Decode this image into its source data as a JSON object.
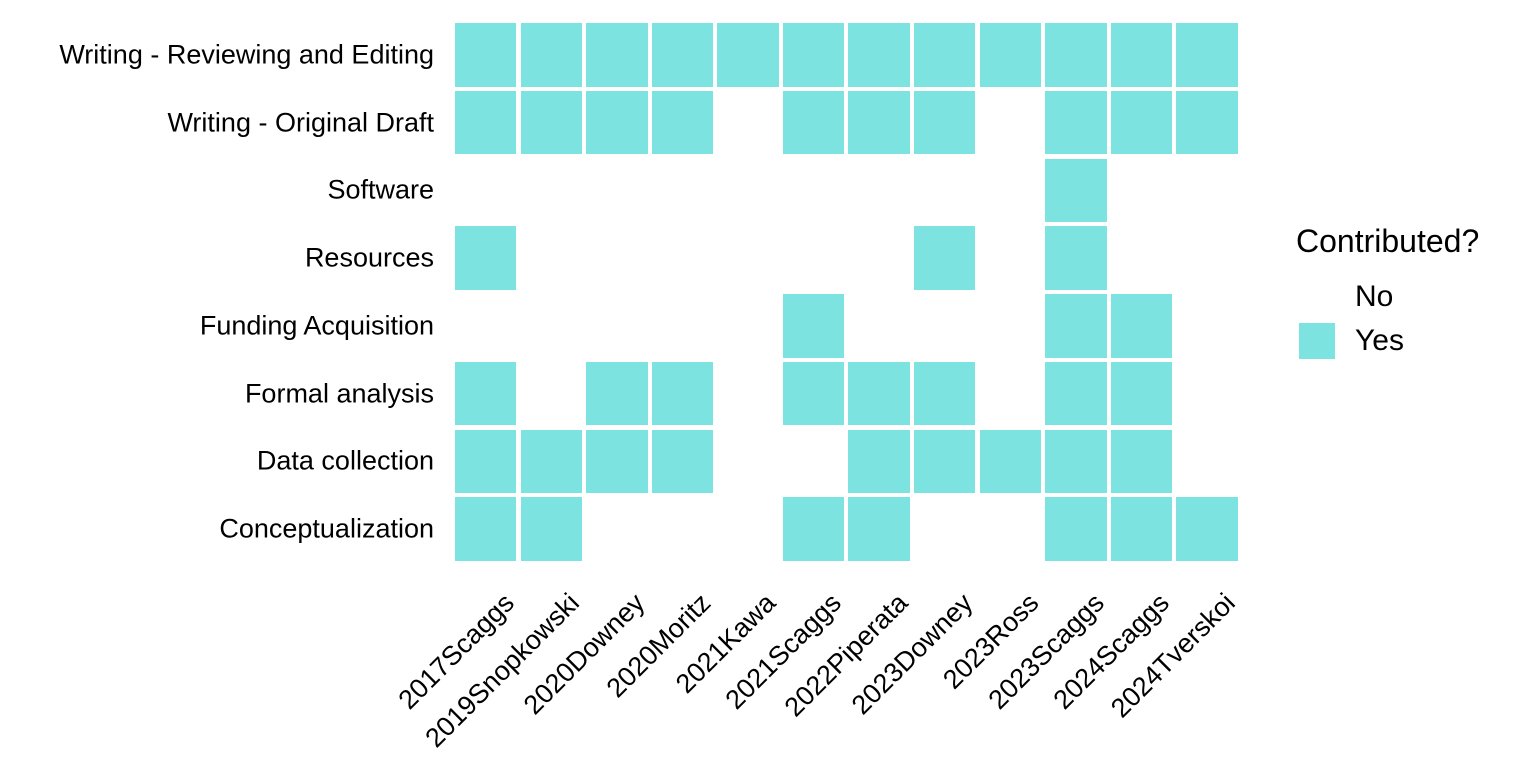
{
  "chart_data": {
    "type": "heatmap",
    "title": "",
    "legend_title": "Contributed?",
    "legend_items": [
      {
        "label": "No",
        "color": "#FFFFFF"
      },
      {
        "label": "Yes",
        "color": "#7CE3E0"
      }
    ],
    "rows": [
      "Writing - Reviewing and Editing",
      "Writing - Original Draft",
      "Software",
      "Resources",
      "Funding Acquisition",
      "Formal analysis",
      "Data collection",
      "Conceptualization"
    ],
    "columns": [
      "2017Scaggs",
      "2019Snopkowski",
      "2020Downey",
      "2020Moritz",
      "2021Kawa",
      "2021Scaggs",
      "2022Piperata",
      "2023Downey",
      "2023Ross",
      "2023Scaggs",
      "2024Scaggs",
      "2024Tverskoi"
    ],
    "matrix": [
      [
        1,
        1,
        1,
        1,
        1,
        1,
        1,
        1,
        1,
        1,
        1,
        1
      ],
      [
        1,
        1,
        1,
        1,
        0,
        1,
        1,
        1,
        0,
        1,
        1,
        1
      ],
      [
        0,
        0,
        0,
        0,
        0,
        0,
        0,
        0,
        0,
        1,
        0,
        0
      ],
      [
        1,
        0,
        0,
        0,
        0,
        0,
        0,
        1,
        0,
        1,
        0,
        0
      ],
      [
        0,
        0,
        0,
        0,
        0,
        1,
        0,
        0,
        0,
        1,
        1,
        0
      ],
      [
        1,
        0,
        1,
        1,
        0,
        1,
        1,
        1,
        0,
        1,
        1,
        0
      ],
      [
        1,
        1,
        1,
        1,
        0,
        0,
        1,
        1,
        1,
        1,
        1,
        0
      ],
      [
        1,
        1,
        0,
        0,
        0,
        1,
        1,
        0,
        0,
        1,
        1,
        1
      ]
    ],
    "value_labels": {
      "0": "No",
      "1": "Yes"
    },
    "colors": {
      "yes_fill": "#7CE3E0",
      "no_fill": "#FFFFFF",
      "text": "#000000",
      "background": "#FFFFFF"
    },
    "layout": {
      "legend_position": "right",
      "grid": "off",
      "axis_lines": "off",
      "x_label_angle": 45
    }
  }
}
